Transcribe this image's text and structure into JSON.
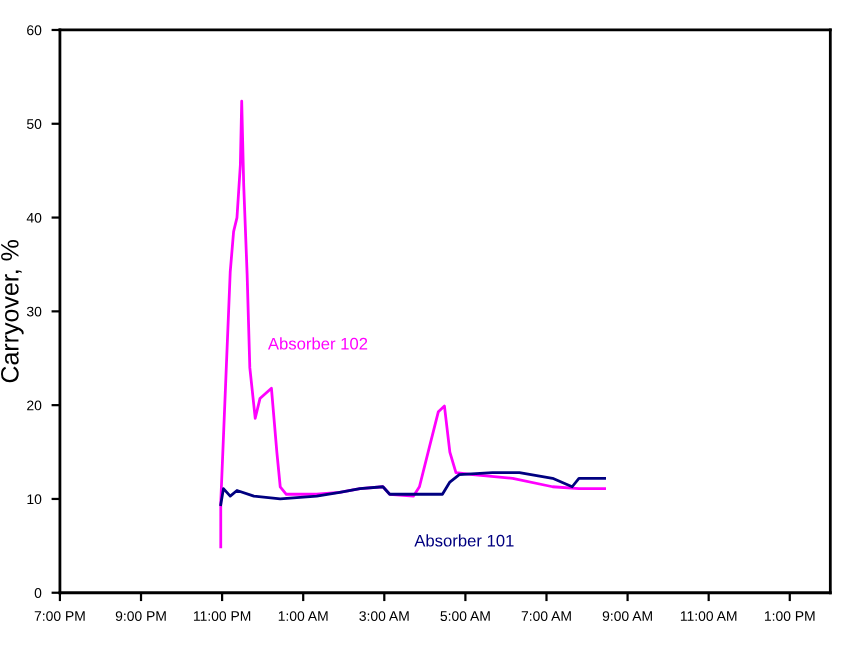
{
  "chart_data": {
    "type": "line",
    "ylabel": "Carryover, %",
    "xlim": [
      "2000-01-01T19:00",
      "2000-01-02T14:00"
    ],
    "xticks": [
      {
        "value": "2000-01-01T19:00",
        "label": "7:00 PM"
      },
      {
        "value": "2000-01-01T21:00",
        "label": "9:00 PM"
      },
      {
        "value": "2000-01-01T23:00",
        "label": "11:00 PM"
      },
      {
        "value": "2000-01-02T01:00",
        "label": "1:00 AM"
      },
      {
        "value": "2000-01-02T03:00",
        "label": "3:00 AM"
      },
      {
        "value": "2000-01-02T05:00",
        "label": "5:00 AM"
      },
      {
        "value": "2000-01-02T07:00",
        "label": "7:00 AM"
      },
      {
        "value": "2000-01-02T09:00",
        "label": "9:00 AM"
      },
      {
        "value": "2000-01-02T11:00",
        "label": "11:00 AM"
      },
      {
        "value": "2000-01-02T13:00",
        "label": "1:00 PM"
      }
    ],
    "ylim": [
      0,
      60
    ],
    "yticks": [
      0,
      10,
      20,
      30,
      40,
      50,
      60
    ],
    "grid": false,
    "legend": false,
    "series": [
      {
        "color": "#ff00ff",
        "x": [
          "2000-01-01T22:58",
          "2000-01-01T22:58",
          "2000-01-01T23:12",
          "2000-01-01T23:17",
          "2000-01-01T23:22",
          "2000-01-01T23:27",
          "2000-01-01T23:29",
          "2000-01-01T23:32",
          "2000-01-01T23:37",
          "2000-01-01T23:41",
          "2000-01-01T23:49",
          "2000-01-01T23:56",
          "2000-01-02T00:13",
          "2000-01-02T00:21",
          "2000-01-02T00:26",
          "2000-01-02T00:35",
          "2000-01-02T01:20",
          "2000-01-02T01:54",
          "2000-01-02T02:24",
          "2000-01-02T02:58",
          "2000-01-02T03:08",
          "2000-01-02T03:43",
          "2000-01-02T03:52",
          "2000-01-02T04:07",
          "2000-01-02T04:20",
          "2000-01-02T04:29",
          "2000-01-02T04:37",
          "2000-01-02T04:46",
          "2000-01-02T05:11",
          "2000-01-02T06:10",
          "2000-01-02T07:09",
          "2000-01-02T07:48",
          "2000-01-02T08:26"
        ],
        "values": [
          4.9,
          9.6,
          34.2,
          38.5,
          40,
          45.6,
          52.4,
          43.4,
          34,
          24,
          18.6,
          20.7,
          21.8,
          15,
          11.3,
          10.5,
          10.5,
          10.7,
          11.1,
          11.3,
          10.5,
          10.3,
          11.3,
          15.6,
          19.3,
          19.9,
          15,
          12.8,
          12.6,
          12.2,
          11.3,
          11.1,
          11.1
        ]
      },
      {
        "color": "#000080",
        "x": [
          "2000-01-01T22:58",
          "2000-01-01T23:02",
          "2000-01-01T23:12",
          "2000-01-01T23:22",
          "2000-01-01T23:47",
          "2000-01-02T00:26",
          "2000-01-02T01:20",
          "2000-01-02T01:54",
          "2000-01-02T02:24",
          "2000-01-02T02:58",
          "2000-01-02T03:08",
          "2000-01-02T04:26",
          "2000-01-02T04:37",
          "2000-01-02T04:51",
          "2000-01-02T05:40",
          "2000-01-02T06:20",
          "2000-01-02T07:09",
          "2000-01-02T07:38",
          "2000-01-02T07:48",
          "2000-01-02T08:26"
        ],
        "values": [
          9.4,
          11.1,
          10.3,
          10.9,
          10.3,
          10,
          10.3,
          10.7,
          11.1,
          11.3,
          10.5,
          10.5,
          11.8,
          12.6,
          12.8,
          12.8,
          12.2,
          11.3,
          12.2,
          12.2
        ]
      }
    ],
    "annotations": [
      "Absorber 102",
      "Absorber 101"
    ]
  }
}
